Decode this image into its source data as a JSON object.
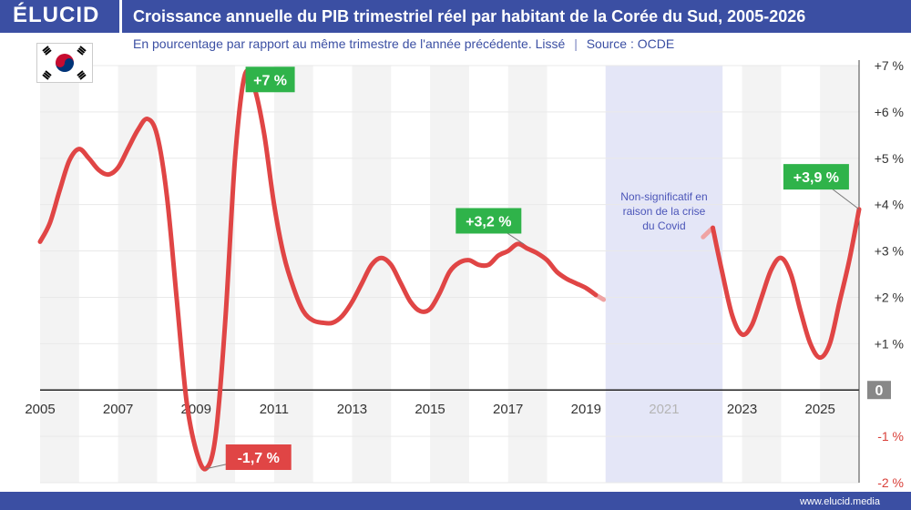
{
  "brand": {
    "logo": "ÉLUCID",
    "website": "www.elucid.media"
  },
  "header": {
    "title": "Croissance annuelle du PIB trimestriel réel par habitant de la Corée du Sud, 2005-2026",
    "subtitle": "En pourcentage par rapport au même trimestre de l'année précédente. Lissé",
    "separator": "|",
    "source": "Source : OCDE"
  },
  "flag_icon": "south-korea-flag-icon",
  "colors": {
    "brand": "#3b4fa3",
    "line": "#e04545",
    "positive_badge": "#2fb34a",
    "negative_badge": "#e04545",
    "covid_band": "#e4e6f7"
  },
  "chart_data": {
    "type": "line",
    "title": "Croissance annuelle du PIB trimestriel réel par habitant de la Corée du Sud, 2005-2026",
    "xlim": [
      2005,
      2026
    ],
    "ylim": [
      -2,
      7
    ],
    "x_ticks": [
      {
        "value": 2005,
        "label": "2005"
      },
      {
        "value": 2007,
        "label": "2007"
      },
      {
        "value": 2009,
        "label": "2009"
      },
      {
        "value": 2011,
        "label": "2011"
      },
      {
        "value": 2013,
        "label": "2013"
      },
      {
        "value": 2015,
        "label": "2015"
      },
      {
        "value": 2017,
        "label": "2017"
      },
      {
        "value": 2019,
        "label": "2019"
      },
      {
        "value": 2021,
        "label": "2021",
        "muted": true
      },
      {
        "value": 2023,
        "label": "2023"
      },
      {
        "value": 2025,
        "label": "2025"
      }
    ],
    "y_ticks": [
      {
        "value": 7,
        "label": "+7 %"
      },
      {
        "value": 6,
        "label": "+6 %"
      },
      {
        "value": 5,
        "label": "+5 %"
      },
      {
        "value": 4,
        "label": "+4 %"
      },
      {
        "value": 3,
        "label": "+3 %"
      },
      {
        "value": 2,
        "label": "+2 %"
      },
      {
        "value": 1,
        "label": "+1 %"
      },
      {
        "value": 0,
        "label": "0",
        "boxed": true
      },
      {
        "value": -1,
        "label": "-1 %",
        "red": true
      },
      {
        "value": -2,
        "label": "-2 %",
        "red": true
      }
    ],
    "covid_band": {
      "from": 2019.5,
      "to": 2022.5,
      "note": [
        "Non-significatif en",
        "raison de la crise",
        "du Covid"
      ]
    },
    "series": [
      {
        "segments": [
          [
            [
              2005.0,
              3.2
            ],
            [
              2005.25,
              3.6
            ],
            [
              2005.5,
              4.3
            ],
            [
              2005.75,
              4.95
            ],
            [
              2006.0,
              5.2
            ],
            [
              2006.25,
              5.0
            ],
            [
              2006.5,
              4.75
            ],
            [
              2006.75,
              4.65
            ],
            [
              2007.0,
              4.8
            ],
            [
              2007.25,
              5.2
            ],
            [
              2007.5,
              5.6
            ],
            [
              2007.75,
              5.85
            ],
            [
              2008.0,
              5.5
            ],
            [
              2008.25,
              4.2
            ],
            [
              2008.5,
              2.0
            ],
            [
              2008.75,
              -0.2
            ],
            [
              2009.0,
              -1.3
            ],
            [
              2009.25,
              -1.7
            ],
            [
              2009.5,
              -1.0
            ],
            [
              2009.75,
              1.5
            ],
            [
              2010.0,
              5.0
            ],
            [
              2010.25,
              6.8
            ],
            [
              2010.5,
              6.5
            ],
            [
              2010.75,
              5.5
            ],
            [
              2011.0,
              4.0
            ],
            [
              2011.25,
              2.9
            ],
            [
              2011.5,
              2.2
            ],
            [
              2011.75,
              1.7
            ],
            [
              2012.0,
              1.5
            ],
            [
              2012.25,
              1.45
            ],
            [
              2012.5,
              1.45
            ],
            [
              2012.75,
              1.6
            ],
            [
              2013.0,
              1.9
            ],
            [
              2013.25,
              2.3
            ],
            [
              2013.5,
              2.7
            ],
            [
              2013.75,
              2.85
            ],
            [
              2014.0,
              2.7
            ],
            [
              2014.25,
              2.3
            ],
            [
              2014.5,
              1.9
            ],
            [
              2014.75,
              1.7
            ],
            [
              2015.0,
              1.75
            ],
            [
              2015.25,
              2.1
            ],
            [
              2015.5,
              2.55
            ],
            [
              2015.75,
              2.75
            ],
            [
              2016.0,
              2.8
            ],
            [
              2016.25,
              2.7
            ],
            [
              2016.5,
              2.7
            ],
            [
              2016.75,
              2.9
            ],
            [
              2017.0,
              3.0
            ],
            [
              2017.25,
              3.15
            ],
            [
              2017.5,
              3.05
            ],
            [
              2017.75,
              2.95
            ],
            [
              2018.0,
              2.8
            ],
            [
              2018.25,
              2.55
            ],
            [
              2018.5,
              2.4
            ],
            [
              2018.75,
              2.3
            ],
            [
              2019.0,
              2.2
            ],
            [
              2019.25,
              2.05
            ]
          ],
          [
            [
              2022.25,
              3.5
            ],
            [
              2022.5,
              2.5
            ],
            [
              2022.75,
              1.6
            ],
            [
              2023.0,
              1.2
            ],
            [
              2023.25,
              1.4
            ],
            [
              2023.5,
              2.0
            ],
            [
              2023.75,
              2.6
            ],
            [
              2024.0,
              2.85
            ],
            [
              2024.25,
              2.5
            ],
            [
              2024.5,
              1.7
            ],
            [
              2024.75,
              1.0
            ],
            [
              2025.0,
              0.7
            ],
            [
              2025.25,
              1.0
            ],
            [
              2025.5,
              1.9
            ],
            [
              2025.75,
              2.8
            ],
            [
              2026.0,
              3.9
            ]
          ]
        ],
        "faded_ends": [
          [
            [
              2019.25,
              2.05
            ],
            [
              2019.45,
              1.95
            ]
          ],
          [
            [
              2022.0,
              3.3
            ],
            [
              2022.25,
              3.5
            ]
          ]
        ]
      }
    ],
    "annotations": [
      {
        "label": "+7 %",
        "x": 2010.25,
        "y": 6.8,
        "kind": "positive",
        "ax": 2010.9,
        "ay": 6.7
      },
      {
        "label": "-1,7 %",
        "x": 2009.25,
        "y": -1.7,
        "kind": "negative",
        "ax": 2010.6,
        "ay": -1.45
      },
      {
        "label": "+3,2 %",
        "x": 2017.4,
        "y": 3.15,
        "kind": "positive",
        "ax": 2016.5,
        "ay": 3.65
      },
      {
        "label": "+3,9 %",
        "x": 2026.0,
        "y": 3.9,
        "kind": "positive",
        "ax": 2024.9,
        "ay": 4.6
      }
    ]
  }
}
